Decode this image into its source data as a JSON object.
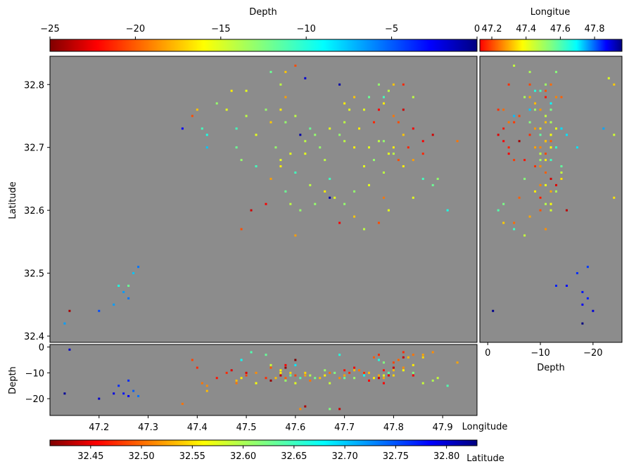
{
  "colorbars": {
    "depth": {
      "label": "Depth",
      "ticks": [
        "−25",
        "−20",
        "−15",
        "−10",
        "−5",
        "0"
      ],
      "range": [
        -25,
        0
      ]
    },
    "longitude": {
      "label": "Longitue",
      "ticks": [
        "47.2",
        "47.4",
        "47.6",
        "47.8"
      ],
      "range": [
        47.13,
        47.96
      ]
    },
    "latitude": {
      "label": "Latitude",
      "ticks": [
        "32.45",
        "32.50",
        "32.55",
        "32.60",
        "32.65",
        "32.70",
        "32.75",
        "32.80"
      ],
      "range": [
        32.41,
        32.83
      ]
    }
  },
  "colors": {
    "plot_background": "#8c8c8c",
    "colormap": "jet"
  },
  "chart_data": [
    {
      "type": "scatter",
      "panel": "map",
      "xlabel": "",
      "ylabel": "Latitude",
      "xlim": [
        47.1,
        47.97
      ],
      "ylim": [
        32.39,
        32.845
      ],
      "yticks": [
        "32.4",
        "32.5",
        "32.6",
        "32.7",
        "32.8"
      ],
      "color_by": "Depth",
      "points": [
        [
          47.62,
          32.81,
          -23
        ],
        [
          47.69,
          32.8,
          -24
        ],
        [
          47.37,
          32.73,
          -22
        ],
        [
          47.61,
          32.72,
          -24
        ],
        [
          47.67,
          32.62,
          -24
        ],
        [
          47.14,
          32.44,
          -1
        ],
        [
          47.13,
          32.42,
          -18
        ],
        [
          47.26,
          32.48,
          -13
        ],
        [
          47.27,
          32.5,
          -17
        ],
        [
          47.25,
          32.47,
          -18
        ],
        [
          47.24,
          32.48,
          -15
        ],
        [
          47.26,
          32.46,
          -19
        ],
        [
          47.28,
          32.51,
          -19
        ],
        [
          47.2,
          32.44,
          -20
        ],
        [
          47.23,
          32.45,
          -18
        ],
        [
          47.5,
          32.79,
          -10
        ],
        [
          47.55,
          32.82,
          -13
        ],
        [
          47.58,
          32.82,
          -8
        ],
        [
          47.6,
          32.83,
          -5
        ],
        [
          47.57,
          32.8,
          -11
        ],
        [
          47.54,
          32.76,
          -12
        ],
        [
          47.5,
          32.75,
          -11
        ],
        [
          47.48,
          32.73,
          -14
        ],
        [
          47.52,
          32.72,
          -10
        ],
        [
          47.55,
          32.74,
          -8
        ],
        [
          47.57,
          32.76,
          -9
        ],
        [
          47.58,
          32.78,
          -7
        ],
        [
          47.56,
          32.7,
          -12
        ],
        [
          47.57,
          32.68,
          -10
        ],
        [
          47.6,
          32.66,
          -14
        ],
        [
          47.63,
          32.64,
          -11
        ],
        [
          47.66,
          32.63,
          -9
        ],
        [
          47.68,
          32.62,
          -10
        ],
        [
          47.72,
          32.63,
          -12
        ],
        [
          47.75,
          32.64,
          -10
        ],
        [
          47.78,
          32.66,
          -11
        ],
        [
          47.8,
          32.7,
          -9
        ],
        [
          47.82,
          32.72,
          -8
        ],
        [
          47.79,
          32.69,
          -10
        ],
        [
          47.77,
          32.71,
          -11
        ],
        [
          47.76,
          32.68,
          -12
        ],
        [
          47.81,
          32.68,
          -5
        ],
        [
          47.83,
          32.7,
          -4
        ],
        [
          47.84,
          32.73,
          -3
        ],
        [
          47.8,
          32.75,
          -6
        ],
        [
          47.78,
          32.77,
          -9
        ],
        [
          47.79,
          32.79,
          -11
        ],
        [
          47.8,
          32.8,
          -8
        ],
        [
          47.77,
          32.8,
          -12
        ],
        [
          47.82,
          32.8,
          -4
        ],
        [
          47.7,
          32.74,
          -11
        ],
        [
          47.71,
          32.76,
          -10
        ],
        [
          47.69,
          32.72,
          -12
        ],
        [
          47.72,
          32.7,
          -9
        ],
        [
          47.74,
          32.67,
          -10
        ],
        [
          47.65,
          32.7,
          -12
        ],
        [
          47.66,
          32.68,
          -11
        ],
        [
          47.63,
          32.73,
          -13
        ],
        [
          47.62,
          32.69,
          -10
        ],
        [
          47.58,
          32.63,
          -13
        ],
        [
          47.59,
          32.61,
          -11
        ],
        [
          47.61,
          32.6,
          -12
        ],
        [
          47.54,
          32.61,
          -3
        ],
        [
          47.49,
          32.57,
          -5
        ],
        [
          47.51,
          32.6,
          -2
        ],
        [
          47.86,
          32.65,
          -14
        ],
        [
          47.88,
          32.64,
          -13
        ],
        [
          47.89,
          32.65,
          -12
        ],
        [
          47.84,
          32.62,
          -10
        ],
        [
          47.91,
          32.6,
          -15
        ],
        [
          47.93,
          32.71,
          -6
        ],
        [
          47.88,
          32.72,
          -2
        ],
        [
          47.86,
          32.69,
          -4
        ],
        [
          47.84,
          32.68,
          -7
        ],
        [
          47.86,
          32.71,
          -3
        ],
        [
          47.4,
          32.76,
          -8
        ],
        [
          47.39,
          32.75,
          -5
        ],
        [
          47.42,
          32.72,
          -15
        ],
        [
          47.42,
          32.7,
          -17
        ],
        [
          47.41,
          32.73,
          -14
        ],
        [
          47.44,
          32.77,
          -12
        ],
        [
          47.47,
          32.79,
          -9
        ],
        [
          47.46,
          32.76,
          -10
        ],
        [
          47.48,
          32.7,
          -13
        ],
        [
          47.49,
          32.68,
          -12
        ],
        [
          47.52,
          32.67,
          -14
        ],
        [
          47.55,
          32.65,
          -7
        ],
        [
          47.57,
          32.67,
          -9
        ],
        [
          47.59,
          32.69,
          -10
        ],
        [
          47.62,
          32.71,
          -11
        ],
        [
          47.64,
          32.72,
          -12
        ],
        [
          47.67,
          32.73,
          -10
        ],
        [
          47.7,
          32.71,
          -11
        ],
        [
          47.73,
          32.73,
          -9
        ],
        [
          47.75,
          32.7,
          -10
        ],
        [
          47.78,
          32.71,
          -12
        ],
        [
          47.8,
          32.69,
          -11
        ],
        [
          47.82,
          32.67,
          -9
        ],
        [
          47.78,
          32.62,
          -6
        ],
        [
          47.79,
          32.6,
          -10
        ],
        [
          47.72,
          32.59,
          -8
        ],
        [
          47.74,
          32.57,
          -11
        ],
        [
          47.69,
          32.58,
          -3
        ],
        [
          47.7,
          32.61,
          -12
        ],
        [
          47.77,
          32.58,
          -5
        ],
        [
          47.67,
          32.65,
          -14
        ],
        [
          47.64,
          32.61,
          -12
        ],
        [
          47.6,
          32.56,
          -7
        ],
        [
          47.76,
          32.74,
          -4
        ],
        [
          47.77,
          32.76,
          -3
        ],
        [
          47.81,
          32.74,
          -5
        ],
        [
          47.82,
          32.76,
          -2
        ],
        [
          47.84,
          32.78,
          -11
        ],
        [
          47.78,
          32.78,
          -14
        ],
        [
          47.75,
          32.78,
          -13
        ],
        [
          47.74,
          32.76,
          -10
        ],
        [
          47.72,
          32.78,
          -8
        ],
        [
          47.7,
          32.77,
          -9
        ],
        [
          47.58,
          32.74,
          -12
        ],
        [
          47.6,
          32.75,
          -11
        ]
      ]
    },
    {
      "type": "scatter",
      "panel": "side",
      "xlabel": "Depth",
      "ylabel": "",
      "xlim": [
        1.5,
        -25.5
      ],
      "ylim": [
        32.39,
        32.845
      ],
      "xticks": [
        "0",
        "−10",
        "−20"
      ],
      "color_by": "Longitue"
    },
    {
      "type": "scatter",
      "panel": "bottom",
      "xlabel": "Longitude",
      "ylabel": "Depth",
      "xlim": [
        47.1,
        47.97
      ],
      "ylim": [
        -26.5,
        1
      ],
      "xticks": [
        "47.2",
        "47.3",
        "47.4",
        "47.5",
        "47.6",
        "47.7",
        "47.8",
        "47.9"
      ],
      "yticks": [
        "0",
        "−10",
        "−20"
      ],
      "color_by": "Latitude"
    }
  ]
}
